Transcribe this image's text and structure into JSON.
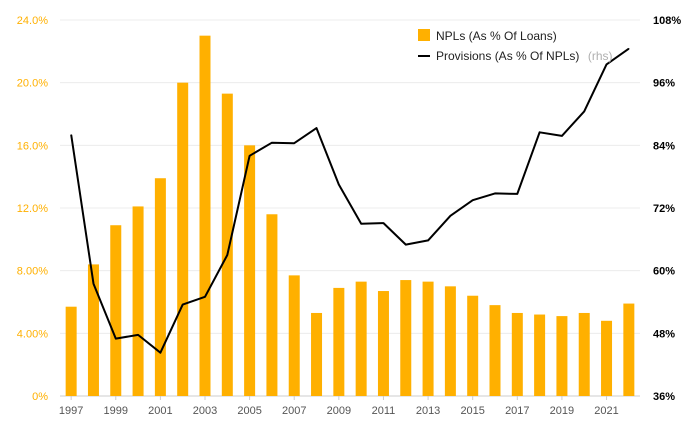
{
  "chart_data": {
    "type": "bar",
    "title": "",
    "categories": [
      "1997",
      "1998",
      "1999",
      "2000",
      "2001",
      "2002",
      "2003",
      "2004",
      "2005",
      "2006",
      "2007",
      "2008",
      "2009",
      "2010",
      "2011",
      "2012",
      "2013",
      "2014",
      "2015",
      "2016",
      "2017",
      "2018",
      "2019",
      "2020",
      "2021",
      "2022"
    ],
    "x_tick_labels": [
      "1997",
      "1999",
      "2001",
      "2003",
      "2005",
      "2007",
      "2009",
      "2011",
      "2013",
      "2015",
      "2017",
      "2019",
      "2021"
    ],
    "series": [
      {
        "name": "NPLs (As % Of Loans)",
        "type": "bar",
        "axis": "left",
        "color": "#FFB000",
        "values": [
          5.7,
          8.4,
          10.9,
          12.1,
          13.9,
          20.0,
          23.0,
          19.3,
          16.0,
          11.6,
          7.7,
          5.3,
          6.9,
          7.3,
          6.7,
          7.4,
          7.3,
          7.0,
          6.4,
          5.8,
          5.3,
          5.2,
          5.1,
          5.3,
          4.8,
          5.9
        ]
      },
      {
        "name": "Provisions (As % Of NPLs)",
        "type": "line",
        "axis": "right",
        "color": "#000000",
        "values": [
          86.0,
          57.5,
          47.0,
          47.7,
          44.3,
          53.5,
          55.0,
          63.0,
          82.0,
          84.5,
          84.4,
          87.3,
          76.5,
          69.0,
          69.1,
          65.0,
          65.8,
          70.5,
          73.5,
          74.8,
          74.7,
          86.5,
          85.8,
          90.5,
          99.5,
          102.5
        ]
      }
    ],
    "legend": {
      "position": "top-right",
      "entries": [
        "NPLs (As % Of Loans)",
        "Provisions (As % Of NPLs)"
      ],
      "note": "(rhs)"
    },
    "y_left": {
      "range": [
        0,
        24
      ],
      "ticks": [
        "0%",
        "4.00%",
        "8.00%",
        "12.0%",
        "16.0%",
        "20.0%",
        "24.0%"
      ],
      "color": "#FFB000"
    },
    "y_right": {
      "range": [
        36,
        108
      ],
      "ticks": [
        "36%",
        "48%",
        "60%",
        "72%",
        "84%",
        "96%",
        "108%"
      ]
    },
    "grid": true
  }
}
